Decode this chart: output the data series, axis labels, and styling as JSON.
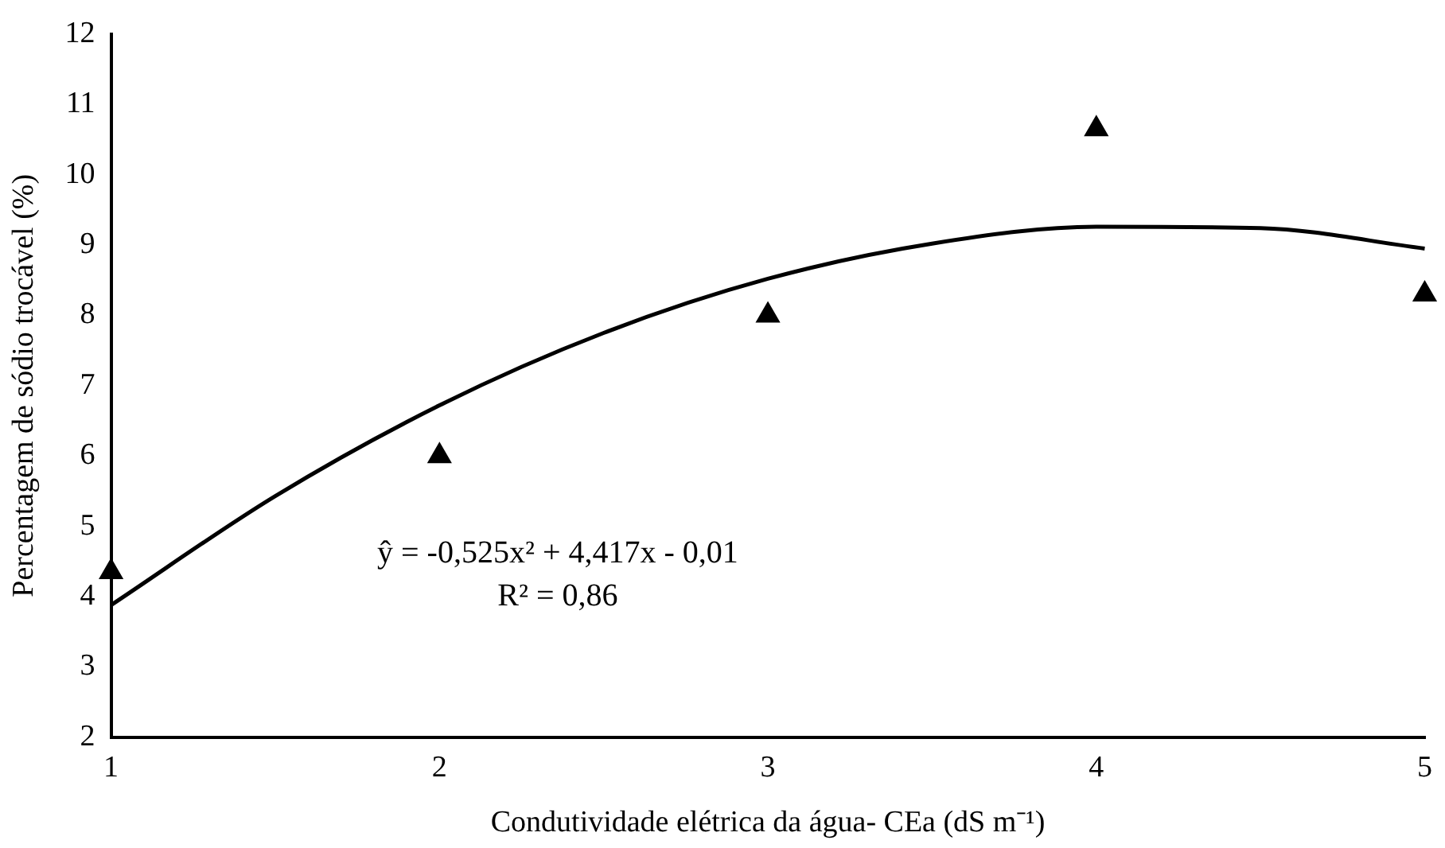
{
  "chart_data": {
    "type": "scatter",
    "xlabel": "Condutividade elétrica da água- CEa (dS m⁻¹)",
    "ylabel": "Percentagem de sódio trocável (%)",
    "xlim": [
      1,
      5
    ],
    "xticks": [
      1,
      2,
      3,
      4,
      5
    ],
    "ylim": [
      2,
      12
    ],
    "yticks": [
      2,
      3,
      4,
      5,
      6,
      7,
      8,
      9,
      10,
      11,
      12
    ],
    "grid": false,
    "legend": false,
    "marker": "triangle",
    "series": [
      {
        "color": "#000000",
        "x": [
          1,
          2,
          3,
          4,
          5
        ],
        "values": [
          4.35,
          6.0,
          8.0,
          10.65,
          8.3
        ]
      },
      {
        "type": "line",
        "color": "#000000",
        "marker": "none",
        "x": [
          1,
          1.5,
          2,
          2.5,
          3,
          3.5,
          4,
          4.5,
          5
        ],
        "values": [
          3.88,
          5.43,
          6.72,
          7.75,
          8.52,
          9.02,
          9.26,
          9.24,
          8.95
        ]
      }
    ],
    "annotations": [
      "ŷ = -0,525x² + 4,417x - 0,01",
      "R² = 0,86"
    ]
  }
}
